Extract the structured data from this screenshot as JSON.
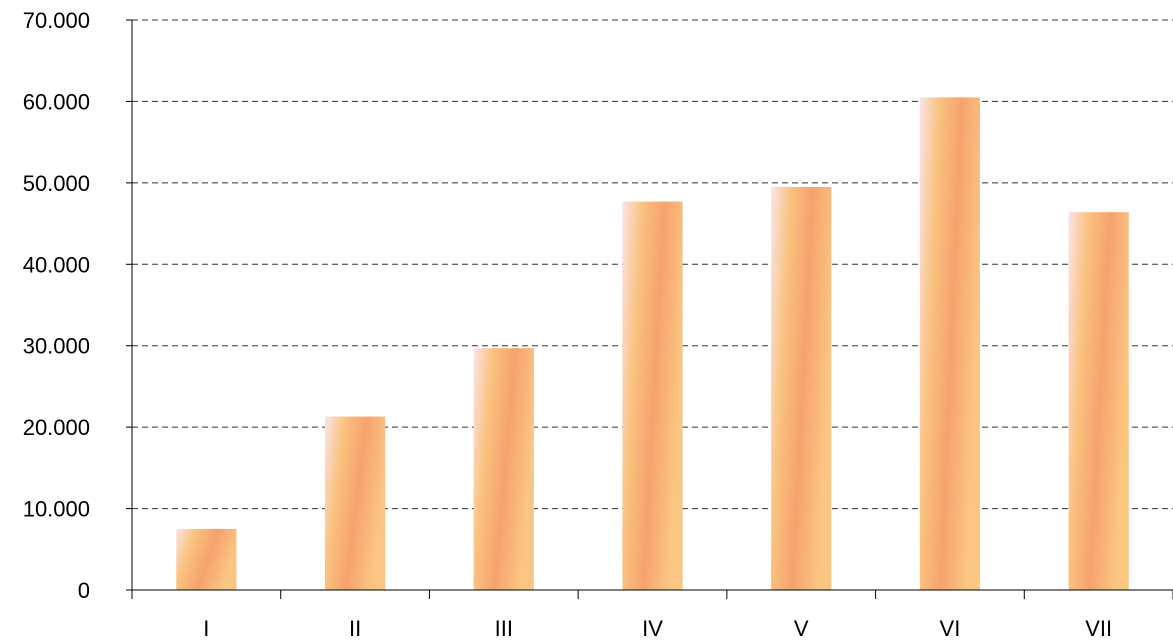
{
  "chart_data": {
    "type": "bar",
    "title": "",
    "xlabel": "",
    "ylabel": "",
    "categories": [
      "I",
      "II",
      "III",
      "IV",
      "V",
      "VI",
      "VII"
    ],
    "values": [
      7500,
      21300,
      29700,
      47700,
      49500,
      60500,
      46400
    ],
    "ylim": [
      0,
      70000
    ],
    "yticks": [
      0,
      10000,
      20000,
      30000,
      40000,
      50000,
      60000,
      70000
    ],
    "ytick_labels": [
      "0",
      "10.000",
      "20.000",
      "30.000",
      "40.000",
      "50.000",
      "60.000",
      "70.000"
    ],
    "grid": true,
    "legend": "none",
    "bar_gradient": [
      "#fbe3e8",
      "#f9c27e",
      "#f7a26e",
      "#fac682"
    ]
  }
}
